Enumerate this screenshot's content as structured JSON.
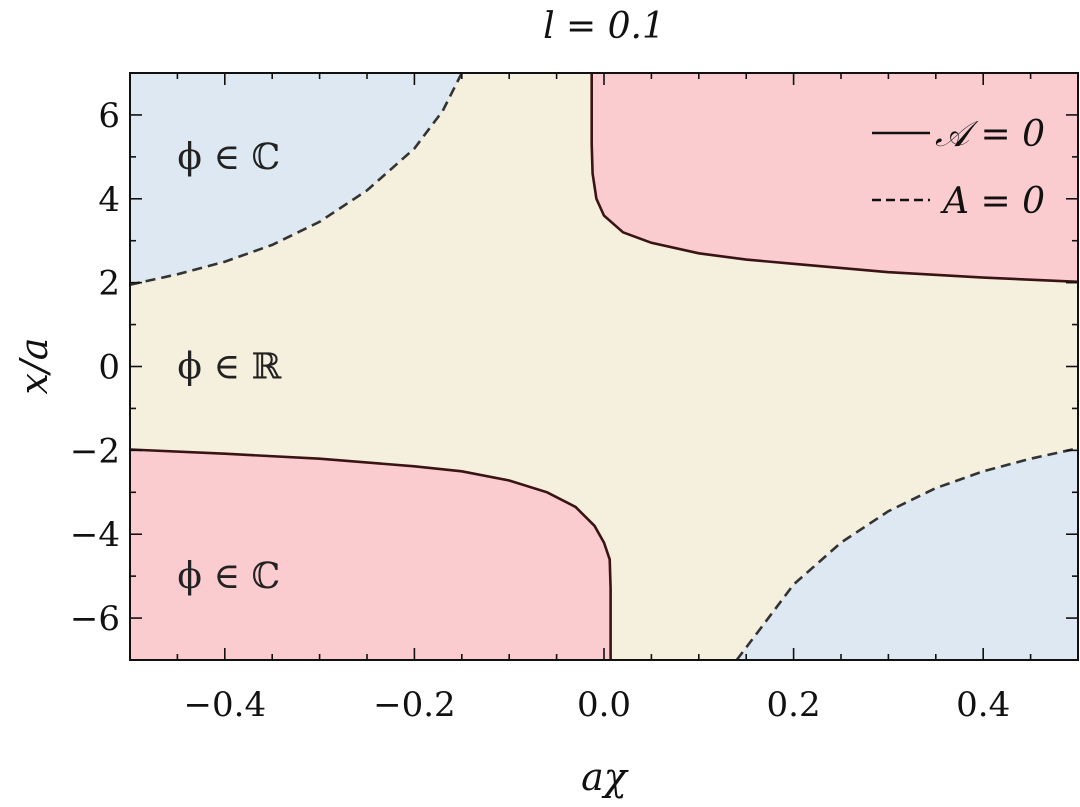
{
  "chart_data": {
    "type": "area",
    "title": "l = 0.1",
    "xlabel": "aχ",
    "ylabel": "x/a",
    "xlim": [
      -0.5,
      0.5
    ],
    "ylim": [
      -7,
      7
    ],
    "xticks": [
      -0.4,
      -0.2,
      0.0,
      0.2,
      0.4
    ],
    "xtick_labels": [
      "−0.4",
      "−0.2",
      "0.0",
      "0.2",
      "0.4"
    ],
    "yticks": [
      -6,
      -4,
      -2,
      0,
      2,
      4,
      6
    ],
    "ytick_labels": [
      "−6",
      "−4",
      "−2",
      "0",
      "2",
      "4",
      "6"
    ],
    "grid": false,
    "legend_position": "top-right",
    "series": [
      {
        "name": "𝒜 = 0",
        "style": "solid",
        "color": "#3a1414",
        "branches": [
          {
            "x": [
              -0.013,
              -0.013,
              -0.012,
              -0.008,
              0.0,
              0.02,
              0.05,
              0.1,
              0.15,
              0.2,
              0.3,
              0.4,
              0.5
            ],
            "y": [
              7.0,
              5.3,
              4.6,
              4.0,
              3.6,
              3.2,
              2.95,
              2.7,
              2.55,
              2.45,
              2.25,
              2.12,
              2.02
            ]
          },
          {
            "x": [
              0.007,
              0.007,
              0.006,
              0.0,
              -0.01,
              -0.03,
              -0.06,
              -0.1,
              -0.15,
              -0.2,
              -0.3,
              -0.4,
              -0.5
            ],
            "y": [
              -7.0,
              -5.3,
              -4.6,
              -4.2,
              -3.8,
              -3.35,
              -3.0,
              -2.72,
              -2.5,
              -2.38,
              -2.2,
              -2.08,
              -1.98
            ]
          }
        ]
      },
      {
        "name": "A = 0",
        "style": "dashed",
        "color": "#333333",
        "branches": [
          {
            "x": [
              -0.5,
              -0.45,
              -0.4,
              -0.35,
              -0.3,
              -0.25,
              -0.2,
              -0.17,
              -0.15
            ],
            "y": [
              1.95,
              2.2,
              2.5,
              2.9,
              3.45,
              4.2,
              5.2,
              6.1,
              7.0
            ]
          },
          {
            "x": [
              0.14,
              0.17,
              0.2,
              0.25,
              0.3,
              0.35,
              0.4,
              0.45,
              0.5
            ],
            "y": [
              -7.0,
              -6.1,
              -5.2,
              -4.2,
              -3.45,
              -2.9,
              -2.5,
              -2.2,
              -1.95
            ]
          }
        ]
      }
    ],
    "regions": [
      {
        "label": "ϕ ∈ ℂ",
        "color": "#dde8f2",
        "boundary_series": "A = 0",
        "side": "outer-top-left"
      },
      {
        "label": "ϕ ∈ ℝ",
        "color": "#f5efdd",
        "side": "middle"
      },
      {
        "label": "ϕ ∈ ℂ",
        "color": "#fbcccf",
        "boundary_series": "𝒜 = 0",
        "side": "outer-bottom-left"
      }
    ],
    "region_label_positions": [
      {
        "label": "ϕ ∈ ℂ",
        "x": -0.45,
        "y": 5.0
      },
      {
        "label": "ϕ ∈ ℝ",
        "x": -0.45,
        "y": 0.0
      },
      {
        "label": "ϕ ∈ ℂ",
        "x": -0.45,
        "y": -5.0
      }
    ]
  }
}
